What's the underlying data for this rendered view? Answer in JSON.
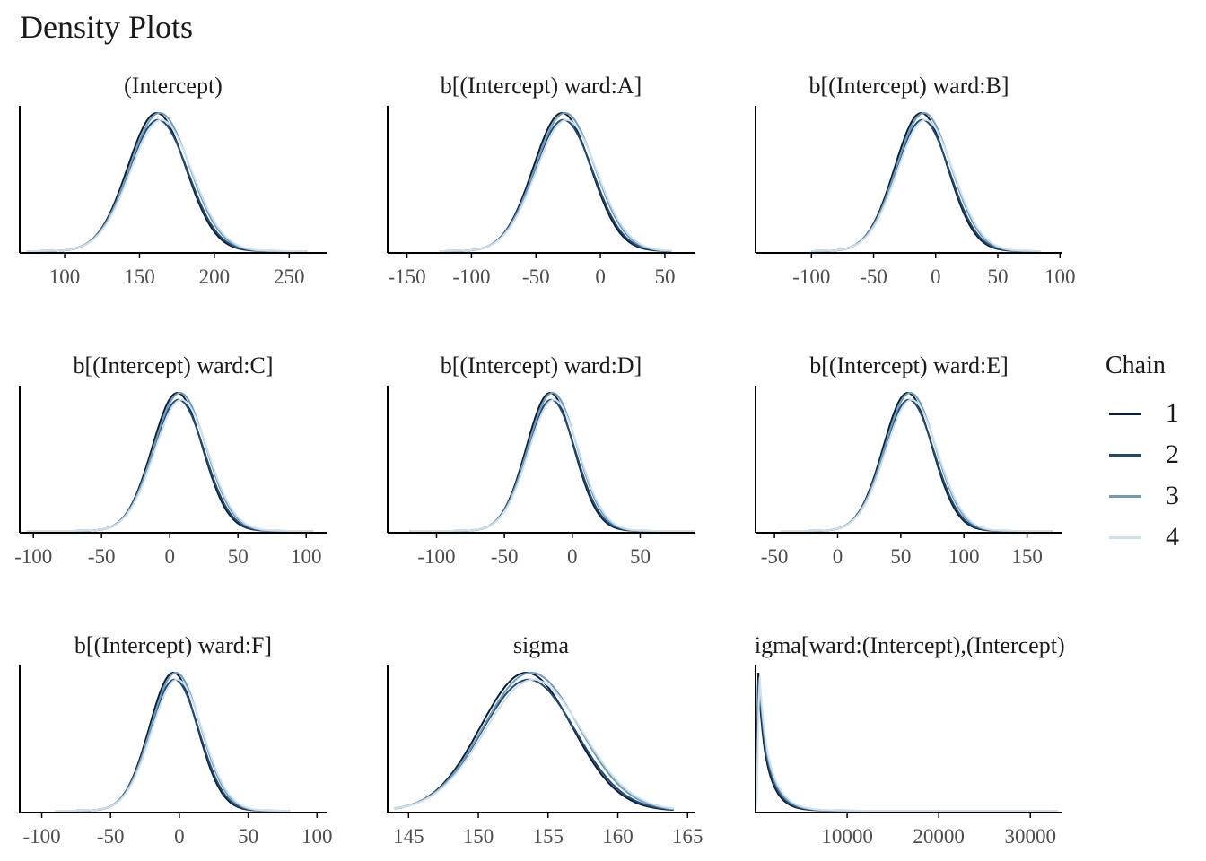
{
  "chart_data": {
    "type": "area",
    "title": "Density Plots",
    "legend": {
      "title": "Chain",
      "placement": "right",
      "items": [
        {
          "label": "1",
          "color": "#0b1d36"
        },
        {
          "label": "2",
          "color": "#1f4a73"
        },
        {
          "label": "3",
          "color": "#6e9bb8"
        },
        {
          "label": "4",
          "color": "#cde0ec"
        }
      ]
    },
    "panels": [
      {
        "title": "(Intercept)",
        "xlim": [
          70,
          275
        ],
        "ticks": [
          100,
          150,
          200,
          250
        ],
        "tick_labels": [
          "100",
          "150",
          "200",
          "250"
        ],
        "kind": "normal",
        "mean": 163,
        "sd": 20,
        "range": [
          75,
          262
        ]
      },
      {
        "title": "b[(Intercept) ward:A]",
        "xlim": [
          -165,
          73
        ],
        "ticks": [
          -150,
          -100,
          -50,
          0,
          50
        ],
        "tick_labels": [
          "-150",
          "-100",
          "-50",
          "0",
          "50"
        ],
        "kind": "normal",
        "mean": -28,
        "sd": 23,
        "range": [
          -125,
          55
        ]
      },
      {
        "title": "b[(Intercept) ward:B]",
        "xlim": [
          -145,
          102
        ],
        "ticks": [
          -100,
          -50,
          0,
          50,
          100
        ],
        "tick_labels": [
          "-100",
          "-50",
          "0",
          "50",
          "100"
        ],
        "kind": "normal",
        "mean": -10,
        "sd": 22,
        "range": [
          -100,
          85
        ]
      },
      {
        "title": "b[(Intercept) ward:C]",
        "xlim": [
          -110,
          115
        ],
        "ticks": [
          -100,
          -50,
          0,
          50,
          100
        ],
        "tick_labels": [
          "-100",
          "-50",
          "0",
          "50",
          "100"
        ],
        "kind": "normal",
        "mean": 7,
        "sd": 19,
        "range": [
          -105,
          105
        ]
      },
      {
        "title": "b[(Intercept) ward:D]",
        "xlim": [
          -136,
          90
        ],
        "ticks": [
          -100,
          -50,
          0,
          50
        ],
        "tick_labels": [
          "-100",
          "-50",
          "0",
          "50"
        ],
        "kind": "normal",
        "mean": -15,
        "sd": 18,
        "range": [
          -120,
          90
        ]
      },
      {
        "title": "b[(Intercept) ward:E]",
        "xlim": [
          -65,
          178
        ],
        "ticks": [
          -50,
          0,
          50,
          100,
          150
        ],
        "tick_labels": [
          "-50",
          "0",
          "50",
          "100",
          "150"
        ],
        "kind": "normal",
        "mean": 57,
        "sd": 20,
        "range": [
          -45,
          170
        ]
      },
      {
        "title": "b[(Intercept) ward:F]",
        "xlim": [
          -116,
          107
        ],
        "ticks": [
          -100,
          -50,
          0,
          50,
          100
        ],
        "tick_labels": [
          "-100",
          "-50",
          "0",
          "50",
          "100"
        ],
        "kind": "normal",
        "mean": -3,
        "sd": 18,
        "range": [
          -90,
          80
        ]
      },
      {
        "title": "sigma",
        "xlim": [
          143.5,
          165.5
        ],
        "ticks": [
          145,
          150,
          155,
          160,
          165
        ],
        "tick_labels": [
          "145",
          "150",
          "155",
          "160",
          "165"
        ],
        "kind": "normal",
        "mean": 153.7,
        "sd": 3.4,
        "range": [
          144,
          164
        ]
      },
      {
        "title": "sigma[ward:(Intercept),(Intercept)]",
        "xlim": [
          0,
          33500
        ],
        "ticks": [
          10000,
          20000,
          30000
        ],
        "tick_labels": [
          "10000",
          "20000",
          "30000"
        ],
        "kind": "skew",
        "mode": 350,
        "range": [
          0,
          33000
        ]
      }
    ]
  }
}
